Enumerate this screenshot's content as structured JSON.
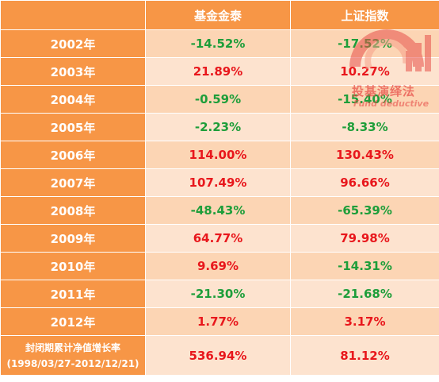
{
  "header": {
    "col1": "",
    "col2": "基金金泰",
    "col3": "上证指数"
  },
  "rows": [
    {
      "year": "2002年",
      "fund": "-14.52%",
      "index": "-17.52%"
    },
    {
      "year": "2003年",
      "fund": "21.89%",
      "index": "10.27%"
    },
    {
      "year": "2004年",
      "fund": "-0.59%",
      "index": "-15.40%"
    },
    {
      "year": "2005年",
      "fund": "-2.23%",
      "index": "-8.33%"
    },
    {
      "year": "2006年",
      "fund": "114.00%",
      "index": "130.43%"
    },
    {
      "year": "2007年",
      "fund": "107.49%",
      "index": "96.66%"
    },
    {
      "year": "2008年",
      "fund": "-48.43%",
      "index": "-65.39%"
    },
    {
      "year": "2009年",
      "fund": "64.77%",
      "index": "79.98%"
    },
    {
      "year": "2010年",
      "fund": "9.69%",
      "index": "-14.31%"
    },
    {
      "year": "2011年",
      "fund": "-21.30%",
      "index": "-21.68%"
    },
    {
      "year": "2012年",
      "fund": "1.77%",
      "index": "3.17%"
    }
  ],
  "total": {
    "label_line1": "封闭期累计净值增长率",
    "label_line2": "(1998/03/27-2012/12/21)",
    "fund": "536.94%",
    "index": "81.12%"
  },
  "watermark": {
    "cn": "投基演绎法",
    "en": "Fund deductive"
  },
  "colors": {
    "header_bg": "#F79646",
    "cell_bg": "#FCD5B4",
    "positive": "#E8171C",
    "negative": "#1E9E3A"
  }
}
